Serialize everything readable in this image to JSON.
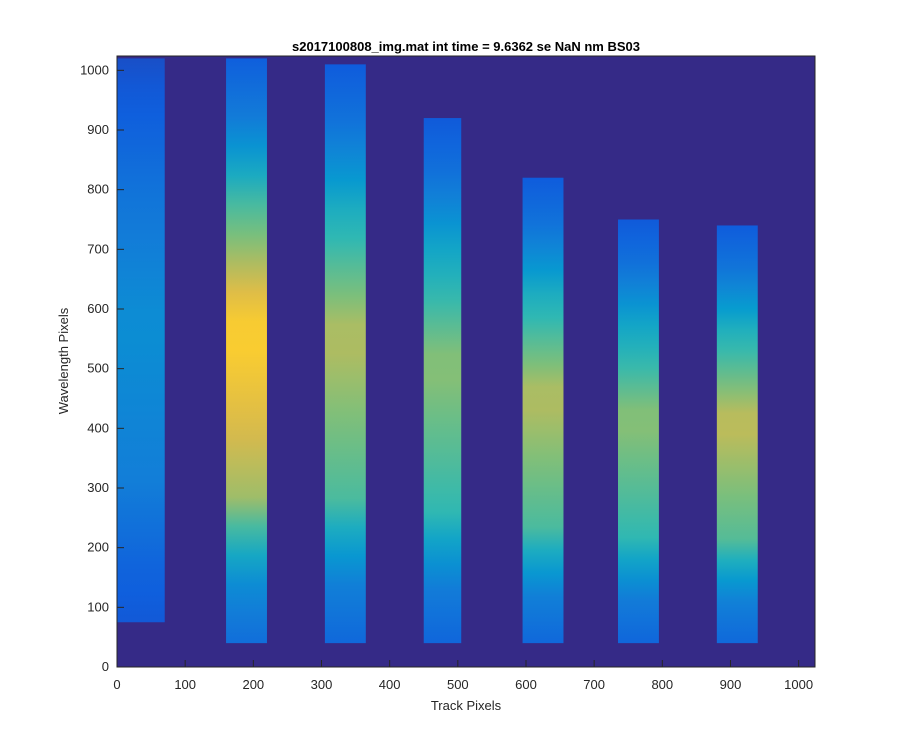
{
  "chart_data": {
    "type": "heatmap",
    "title": "s2017100808_img.mat int time = 9.6362 se  NaN nm BS03",
    "xlabel": "Track Pixels",
    "ylabel": "Wavelength Pixels",
    "xlim": [
      0,
      1024
    ],
    "ylim": [
      0,
      1024
    ],
    "x_ticks": [
      0,
      100,
      200,
      300,
      400,
      500,
      600,
      700,
      800,
      900,
      1000
    ],
    "y_ticks": [
      0,
      100,
      200,
      300,
      400,
      500,
      600,
      700,
      800,
      900,
      1000
    ],
    "grid": false,
    "colormap": "parula",
    "colors": {
      "background": "#352a87",
      "low": "#0f5cdd",
      "mid": "#2db8b4",
      "high": "#f9d31a"
    },
    "bands": [
      {
        "x_start": 0,
        "x_end": 70,
        "y_start": 75,
        "y_end": 1020,
        "peak_intensity": 0.35
      },
      {
        "x_start": 160,
        "x_end": 220,
        "y_start": 40,
        "y_end": 1020,
        "peak_intensity": 0.95
      },
      {
        "x_start": 305,
        "x_end": 365,
        "y_start": 40,
        "y_end": 1010,
        "peak_intensity": 0.78
      },
      {
        "x_start": 450,
        "x_end": 505,
        "y_start": 40,
        "y_end": 920,
        "peak_intensity": 0.72
      },
      {
        "x_start": 595,
        "x_end": 655,
        "y_start": 40,
        "y_end": 820,
        "peak_intensity": 0.78
      },
      {
        "x_start": 735,
        "x_end": 795,
        "y_start": 40,
        "y_end": 750,
        "peak_intensity": 0.72
      },
      {
        "x_start": 880,
        "x_end": 940,
        "y_start": 40,
        "y_end": 740,
        "peak_intensity": 0.8
      }
    ]
  }
}
